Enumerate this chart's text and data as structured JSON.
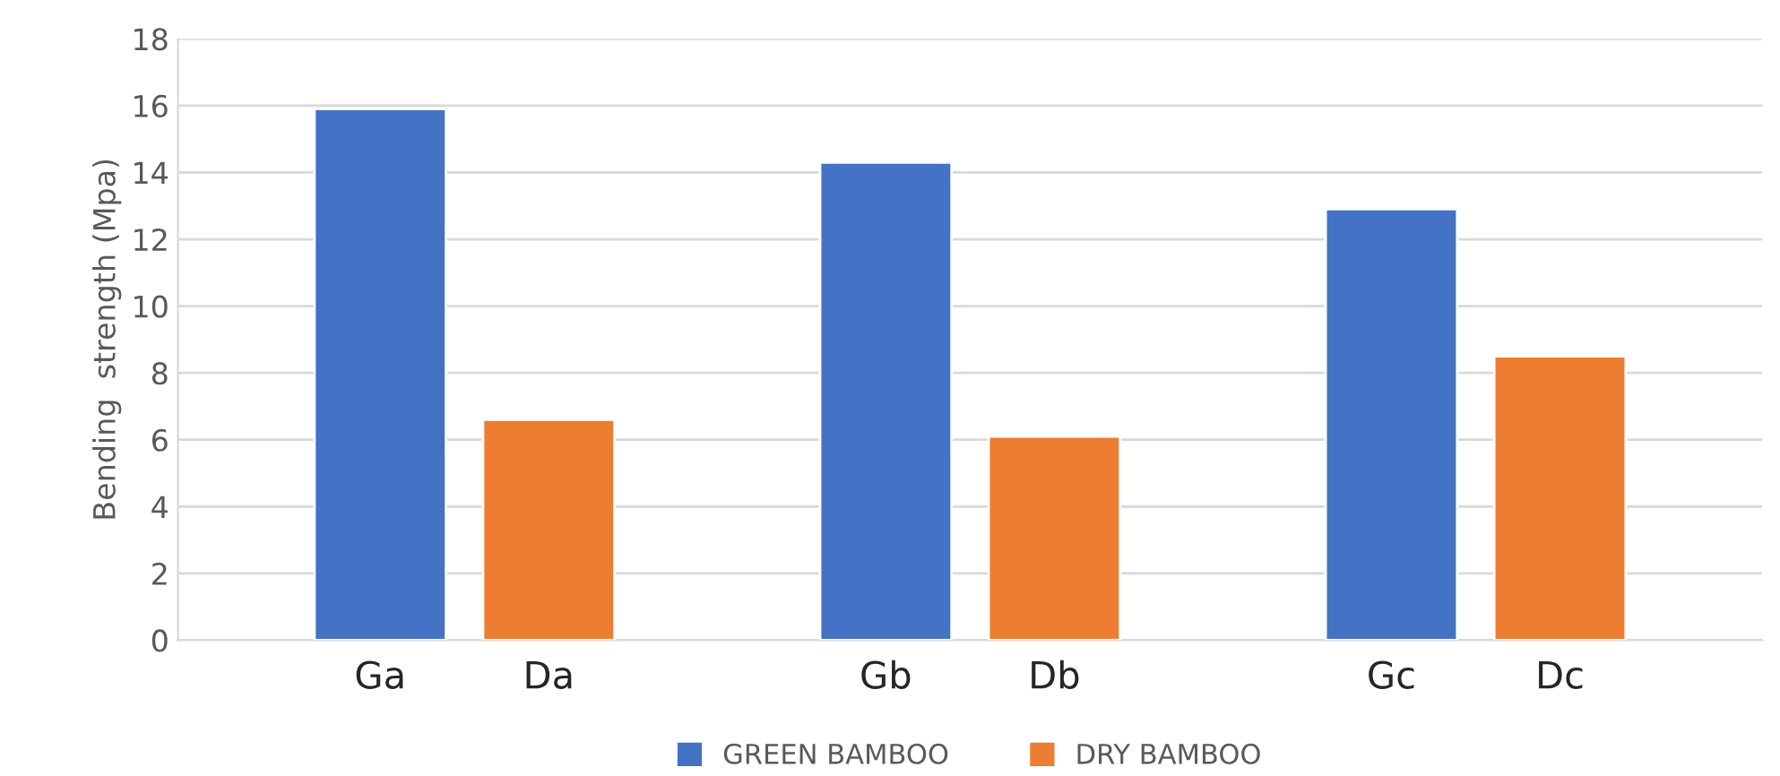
{
  "chart_data": {
    "type": "bar",
    "ylabel": "Bending  strength (Mpa)",
    "categories": [
      "Ga",
      "Da",
      "Gb",
      "Db",
      "Gc",
      "Dc"
    ],
    "series": [
      {
        "name": "GREEN BAMBOO",
        "color": "#4472c4",
        "values": [
          15.9,
          null,
          14.3,
          null,
          12.9,
          null
        ]
      },
      {
        "name": "DRY BAMBOO",
        "color": "#ed7d31",
        "values": [
          null,
          6.6,
          null,
          6.1,
          null,
          8.5
        ]
      }
    ],
    "ylim": [
      0,
      18
    ],
    "yticks": [
      0,
      2,
      4,
      6,
      8,
      10,
      12,
      14,
      16,
      18
    ],
    "grid": "y",
    "legend": "bottom"
  }
}
